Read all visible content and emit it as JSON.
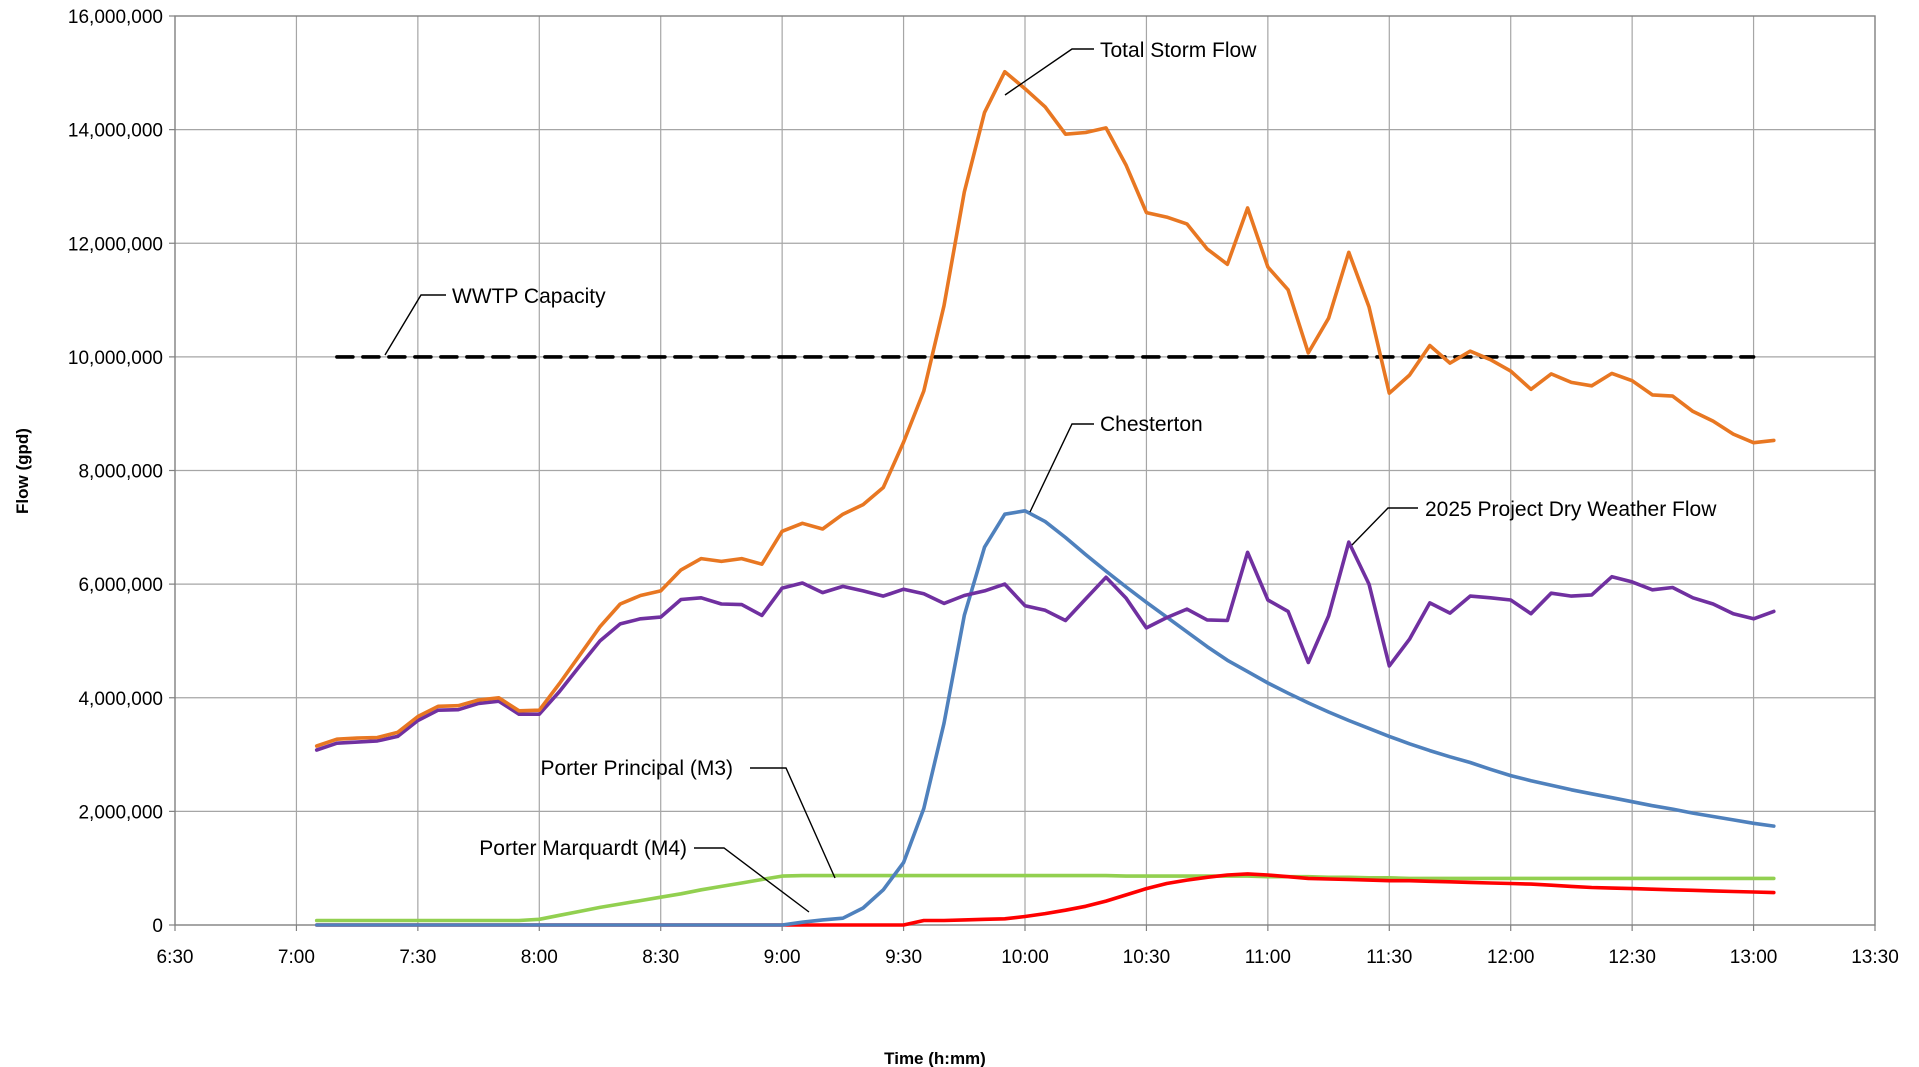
{
  "chart_data": {
    "type": "line",
    "title": "",
    "xlabel": "Time (h:mm)",
    "ylabel": "Flow (gpd)",
    "xlim": [
      "6:30",
      "13:30"
    ],
    "ylim": [
      0,
      16000000
    ],
    "x_ticks": [
      "6:30",
      "7:00",
      "7:30",
      "8:00",
      "8:30",
      "9:00",
      "9:30",
      "10:00",
      "10:30",
      "11:00",
      "11:30",
      "12:00",
      "12:30",
      "13:00",
      "13:30"
    ],
    "y_ticks": [
      "0",
      "2,000,000",
      "4,000,000",
      "6,000,000",
      "8,000,000",
      "10,000,000",
      "12,000,000",
      "14,000,000",
      "16,000,000"
    ],
    "grid": true,
    "legend": "none",
    "x": [
      "7:05",
      "7:10",
      "7:15",
      "7:20",
      "7:25",
      "7:30",
      "7:35",
      "7:40",
      "7:45",
      "7:50",
      "7:55",
      "8:00",
      "8:05",
      "8:10",
      "8:15",
      "8:20",
      "8:25",
      "8:30",
      "8:35",
      "8:40",
      "8:45",
      "8:50",
      "8:55",
      "9:00",
      "9:05",
      "9:10",
      "9:15",
      "9:20",
      "9:25",
      "9:30",
      "9:35",
      "9:40",
      "9:45",
      "9:50",
      "9:55",
      "10:00",
      "10:05",
      "10:10",
      "10:15",
      "10:20",
      "10:25",
      "10:30",
      "10:35",
      "10:40",
      "10:45",
      "10:50",
      "10:55",
      "11:00",
      "11:05",
      "11:10",
      "11:15",
      "11:20",
      "11:25",
      "11:30",
      "11:35",
      "11:40",
      "11:45",
      "11:50",
      "11:55",
      "12:00",
      "12:05",
      "12:10",
      "12:15",
      "12:20",
      "12:25",
      "12:30",
      "12:35",
      "12:40",
      "12:45",
      "12:50",
      "12:55",
      "13:00",
      "13:05"
    ],
    "series": [
      {
        "name": "Total Storm Flow",
        "color": "#e87722",
        "values": [
          3150000,
          3270000,
          3290000,
          3300000,
          3390000,
          3670000,
          3850000,
          3860000,
          3960000,
          4000000,
          3770000,
          3780000,
          4250000,
          4750000,
          5250000,
          5650000,
          5800000,
          5880000,
          6250000,
          6450000,
          6400000,
          6450000,
          6350000,
          6930000,
          7070000,
          6970000,
          7230000,
          7400000,
          7700000,
          8500000,
          9400000,
          10900000,
          12900000,
          14300000,
          15020000,
          14720000,
          14400000,
          13920000,
          13950000,
          14030000,
          13370000,
          12540000,
          12460000,
          12340000,
          11900000,
          11630000,
          12620000,
          11580000,
          11180000,
          10070000,
          10680000,
          11840000,
          10880000,
          9360000,
          9680000,
          10200000,
          9890000,
          10100000,
          9950000,
          9750000,
          9430000,
          9700000,
          9550000,
          9490000,
          9710000,
          9580000,
          9330000,
          9310000,
          9040000,
          8870000,
          8640000,
          8490000,
          8530000
        ]
      },
      {
        "name": "2025 Project Dry Weather Flow",
        "color": "#7030a0",
        "values": [
          3080000,
          3200000,
          3220000,
          3240000,
          3320000,
          3600000,
          3780000,
          3790000,
          3900000,
          3940000,
          3710000,
          3710000,
          4110000,
          4560000,
          5000000,
          5300000,
          5390000,
          5420000,
          5730000,
          5760000,
          5650000,
          5640000,
          5450000,
          5930000,
          6020000,
          5850000,
          5960000,
          5880000,
          5790000,
          5910000,
          5830000,
          5660000,
          5800000,
          5880000,
          6000000,
          5620000,
          5540000,
          5360000,
          5740000,
          6120000,
          5750000,
          5230000,
          5410000,
          5560000,
          5370000,
          5360000,
          6560000,
          5720000,
          5520000,
          4620000,
          5440000,
          6740000,
          6000000,
          4560000,
          5030000,
          5670000,
          5490000,
          5790000,
          5760000,
          5720000,
          5480000,
          5840000,
          5790000,
          5810000,
          6130000,
          6040000,
          5900000,
          5940000,
          5760000,
          5650000,
          5480000,
          5390000,
          5520000
        ]
      },
      {
        "name": "Chesterton",
        "color": "#4f81bd",
        "values": [
          0,
          0,
          0,
          0,
          0,
          0,
          0,
          0,
          0,
          0,
          0,
          0,
          0,
          0,
          0,
          0,
          0,
          0,
          0,
          0,
          0,
          0,
          0,
          0,
          50000,
          90000,
          120000,
          300000,
          620000,
          1100000,
          2050000,
          3550000,
          5450000,
          6650000,
          7230000,
          7290000,
          7100000,
          6820000,
          6520000,
          6230000,
          5950000,
          5680000,
          5420000,
          5160000,
          4900000,
          4660000,
          4460000,
          4260000,
          4080000,
          3910000,
          3750000,
          3600000,
          3460000,
          3320000,
          3190000,
          3070000,
          2960000,
          2860000,
          2740000,
          2630000,
          2540000,
          2460000,
          2380000,
          2310000,
          2240000,
          2170000,
          2100000,
          2040000,
          1970000,
          1910000,
          1850000,
          1790000,
          1740000
        ]
      },
      {
        "name": "Porter Principal (M3)",
        "color": "#92d050",
        "values": [
          80000,
          80000,
          80000,
          80000,
          80000,
          80000,
          80000,
          80000,
          80000,
          80000,
          80000,
          100000,
          170000,
          240000,
          310000,
          370000,
          430000,
          490000,
          550000,
          620000,
          680000,
          740000,
          800000,
          860000,
          870000,
          870000,
          870000,
          870000,
          870000,
          870000,
          870000,
          870000,
          870000,
          870000,
          870000,
          870000,
          870000,
          870000,
          870000,
          870000,
          860000,
          860000,
          860000,
          860000,
          860000,
          860000,
          860000,
          850000,
          850000,
          850000,
          840000,
          840000,
          830000,
          830000,
          820000,
          820000,
          820000,
          820000,
          820000,
          820000,
          820000,
          820000,
          820000,
          820000,
          820000,
          820000,
          820000,
          820000,
          820000,
          820000,
          820000,
          820000,
          820000
        ]
      },
      {
        "name": "Porter Marquardt (M4)",
        "color": "#ff0000",
        "values": [
          0,
          0,
          0,
          0,
          0,
          0,
          0,
          0,
          0,
          0,
          0,
          0,
          0,
          0,
          0,
          0,
          0,
          0,
          0,
          0,
          0,
          0,
          0,
          0,
          0,
          0,
          0,
          0,
          0,
          0,
          80000,
          80000,
          90000,
          100000,
          110000,
          150000,
          200000,
          260000,
          330000,
          420000,
          530000,
          640000,
          730000,
          790000,
          840000,
          880000,
          900000,
          880000,
          850000,
          820000,
          810000,
          800000,
          790000,
          780000,
          780000,
          770000,
          760000,
          750000,
          740000,
          730000,
          720000,
          700000,
          680000,
          660000,
          650000,
          640000,
          630000,
          620000,
          610000,
          600000,
          590000,
          580000,
          570000
        ]
      },
      {
        "name": "WWTP Capacity",
        "color": "#000000",
        "dashed": true,
        "values_by_time": {
          "7:10": 10000000,
          "13:00": 10000000
        }
      }
    ],
    "annotations": [
      {
        "text": "Total Storm Flow"
      },
      {
        "text": "WWTP Capacity"
      },
      {
        "text": "Chesterton"
      },
      {
        "text": "2025 Project Dry Weather Flow"
      },
      {
        "text": "Porter Principal (M3)"
      },
      {
        "text": "Porter Marquardt (M4)"
      }
    ]
  }
}
